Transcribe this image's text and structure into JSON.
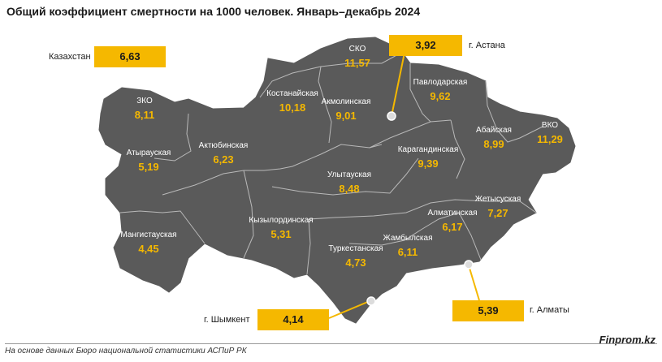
{
  "title": "Общий коэффициент смертности на 1000 человек. Январь–декабрь 2024",
  "colors": {
    "region_fill": "#5a5a5a",
    "border": "#b9b9b9",
    "accent": "#f5b800",
    "text_value": "#f5b800"
  },
  "country": {
    "name": "Казахстан",
    "value": "6,63"
  },
  "regions": [
    {
      "id": "sko",
      "name": "СКО",
      "value": "11,57"
    },
    {
      "id": "kostanay",
      "name": "Костанайская",
      "value": "10,18"
    },
    {
      "id": "akmola",
      "name": "Акмолинская",
      "value": "9,01"
    },
    {
      "id": "pavlodar",
      "name": "Павлодарская",
      "value": "9,62"
    },
    {
      "id": "zko",
      "name": "ЗКО",
      "value": "8,11"
    },
    {
      "id": "aktobe",
      "name": "Актюбинская",
      "value": "6,23"
    },
    {
      "id": "atyrau",
      "name": "Атырауская",
      "value": "5,19"
    },
    {
      "id": "karaganda",
      "name": "Карагандинская",
      "value": "9,39"
    },
    {
      "id": "abay",
      "name": "Абайская",
      "value": "8,99"
    },
    {
      "id": "vko",
      "name": "ВКО",
      "value": "11,29"
    },
    {
      "id": "ulytau",
      "name": "Улытауская",
      "value": "8,48"
    },
    {
      "id": "zhetysu",
      "name": "Жетысуская",
      "value": "7,27"
    },
    {
      "id": "almaty_reg",
      "name": "Алматинская",
      "value": "6,17"
    },
    {
      "id": "mangystau",
      "name": "Мангистауская",
      "value": "4,45"
    },
    {
      "id": "kyzylorda",
      "name": "Кызылординская",
      "value": "5,31"
    },
    {
      "id": "turkestan",
      "name": "Туркестанская",
      "value": "4,73"
    },
    {
      "id": "zhambyl",
      "name": "Жамбылская",
      "value": "6,11"
    }
  ],
  "cities": [
    {
      "id": "astana",
      "name": "г. Астана",
      "value": "3,92"
    },
    {
      "id": "shymkent",
      "name": "г. Шымкент",
      "value": "4,14"
    },
    {
      "id": "almaty",
      "name": "г. Алматы",
      "value": "5,39"
    }
  ],
  "source": "На основе данных Бюро национальной статистики АСПиР РК",
  "brand": "Finprom.kz"
}
